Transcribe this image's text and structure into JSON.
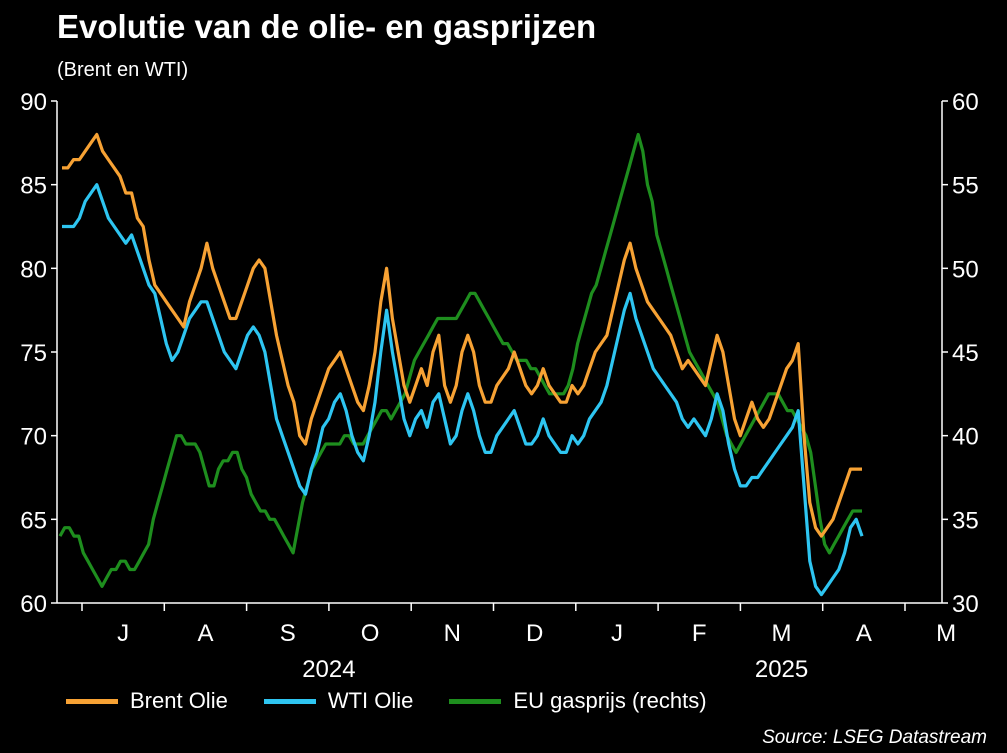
{
  "title": "Evolutie van de olie- en gasprijzen",
  "subtitle": "(Brent en WTI)",
  "source": "Source: LSEG Datastream",
  "chart_data": {
    "type": "line",
    "x_ticks": [
      "J",
      "A",
      "S",
      "O",
      "N",
      "D",
      "J",
      "F",
      "M",
      "A",
      "M"
    ],
    "year_labels": [
      "2024",
      "2025"
    ],
    "y_left": {
      "min": 60,
      "max": 90,
      "ticks": [
        60,
        65,
        70,
        75,
        80,
        85,
        90
      ]
    },
    "y_right": {
      "min": 30,
      "max": 60,
      "ticks": [
        30,
        35,
        40,
        45,
        50,
        55,
        60
      ]
    },
    "grid": false,
    "legend_position": "bottom",
    "series": [
      {
        "name": "Brent Olie",
        "color": "#F7A234",
        "axis": "left",
        "values": [
          86,
          86,
          86.5,
          86.5,
          87,
          87.5,
          88,
          87,
          86.5,
          86,
          85.5,
          84.5,
          84.5,
          83,
          82.5,
          80.5,
          79,
          78.5,
          78,
          77.5,
          77,
          76.5,
          78,
          79,
          80,
          81.5,
          80,
          79,
          78,
          77,
          77,
          78,
          79,
          80,
          80.5,
          80,
          78,
          76,
          74.5,
          73,
          72,
          70,
          69.5,
          71,
          72,
          73,
          74,
          74.5,
          75,
          74,
          73,
          72,
          71.5,
          73,
          75,
          78,
          80,
          77,
          75,
          73,
          72,
          73,
          74,
          73,
          75,
          76,
          73,
          72,
          73,
          75,
          76,
          75,
          73,
          72,
          72,
          73,
          73.5,
          74,
          75,
          74,
          73,
          72.5,
          73,
          74,
          73,
          72.5,
          72,
          72,
          73,
          72.5,
          73,
          74,
          75,
          75.5,
          76,
          77.5,
          79,
          80.5,
          81.5,
          80,
          79,
          78,
          77.5,
          77,
          76.5,
          76,
          75,
          74,
          74.5,
          74,
          73.5,
          73,
          74.5,
          76,
          75,
          73,
          71,
          70,
          71,
          72,
          71,
          70.5,
          71,
          72,
          73,
          74,
          74.5,
          75.5,
          70,
          66,
          64.5,
          64,
          64.5,
          65,
          66,
          67,
          68,
          68,
          68
        ]
      },
      {
        "name": "WTI Olie",
        "color": "#2EC5F1",
        "axis": "left",
        "values": [
          82.5,
          82.5,
          82.5,
          83,
          84,
          84.5,
          85,
          84,
          83,
          82.5,
          82,
          81.5,
          82,
          81,
          80,
          79,
          78.5,
          77,
          75.5,
          74.5,
          75,
          76,
          77,
          77.5,
          78,
          78,
          77,
          76,
          75,
          74.5,
          74,
          75,
          76,
          76.5,
          76,
          75,
          73,
          71,
          70,
          69,
          68,
          67,
          66.5,
          68,
          69,
          70.5,
          71,
          72,
          72.5,
          71.5,
          70,
          69,
          68.5,
          70,
          72,
          75,
          77.5,
          75,
          73,
          71,
          70,
          71,
          71.5,
          70.5,
          72,
          72.5,
          71,
          69.5,
          70,
          71.5,
          72.5,
          71.5,
          70,
          69,
          69,
          70,
          70.5,
          71,
          71.5,
          70.5,
          69.5,
          69.5,
          70,
          71,
          70,
          69.5,
          69,
          69,
          70,
          69.5,
          70,
          71,
          71.5,
          72,
          73,
          74.5,
          76,
          77.5,
          78.5,
          77,
          76,
          75,
          74,
          73.5,
          73,
          72.5,
          72,
          71,
          70.5,
          71,
          70.5,
          70,
          71,
          72.5,
          71.5,
          69.5,
          68,
          67,
          67,
          67.5,
          67.5,
          68,
          68.5,
          69,
          69.5,
          70,
          70.5,
          71.5,
          67,
          62.5,
          61,
          60.5,
          61,
          61.5,
          62,
          63,
          64.5,
          65,
          64
        ]
      },
      {
        "name": "EU gasprijs (rechts)",
        "color": "#1E8E1E",
        "axis": "right",
        "values": [
          34,
          34.5,
          34.5,
          34,
          34,
          33,
          32.5,
          32,
          31.5,
          31,
          31.5,
          32,
          32,
          32.5,
          32.5,
          32,
          32,
          32.5,
          33,
          33.5,
          35,
          36,
          37,
          38,
          39,
          40,
          40,
          39.5,
          39.5,
          39.5,
          39,
          38,
          37,
          37,
          38,
          38.5,
          38.5,
          39,
          39,
          38,
          37.5,
          36.5,
          36,
          35.5,
          35.5,
          35,
          35,
          34.5,
          34,
          33.5,
          33,
          34.5,
          36,
          37,
          38,
          38.5,
          39,
          39.5,
          39.5,
          39.5,
          39.5,
          40,
          40,
          39.5,
          39.5,
          39.5,
          40,
          40.5,
          41,
          41.5,
          41.5,
          41,
          41.5,
          42,
          42.5,
          43.5,
          44.5,
          45,
          45.5,
          46,
          46.5,
          47,
          47,
          47,
          47,
          47,
          47.5,
          48,
          48.5,
          48.5,
          48,
          47.5,
          47,
          46.5,
          46,
          45.5,
          45.5,
          45,
          44.5,
          44.5,
          44.5,
          44,
          44,
          43.5,
          43,
          42.5,
          42.5,
          42.5,
          42.5,
          43,
          44,
          45.5,
          46.5,
          47.5,
          48.5,
          49,
          50,
          51,
          52,
          53,
          54,
          55,
          56,
          57,
          58,
          57,
          55,
          54,
          52,
          51,
          50,
          49,
          48,
          47,
          46,
          45,
          44.5,
          44,
          43.5,
          43,
          42.5,
          42,
          41,
          40,
          39.5,
          39,
          39.5,
          40,
          40.5,
          41,
          41.5,
          42,
          42.5,
          42.5,
          42.5,
          42,
          41.5,
          41.5,
          41,
          40.5,
          40,
          39,
          37,
          35,
          33.5,
          33,
          33.5,
          34,
          34.5,
          35,
          35.5,
          35.5,
          35.5
        ]
      }
    ]
  }
}
